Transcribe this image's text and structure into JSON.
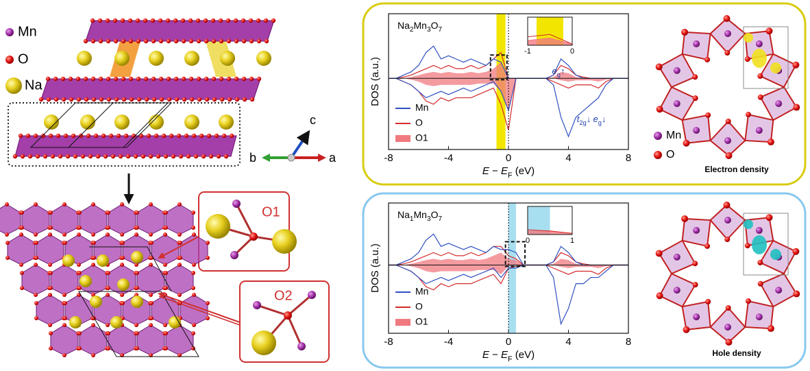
{
  "structure": {
    "legend": [
      "Mn",
      "O",
      "Na"
    ],
    "axes": [
      "c",
      "b",
      "a"
    ],
    "sites": [
      "O1",
      "O2"
    ]
  },
  "density": [
    {
      "legend": [
        "Mn",
        "O"
      ],
      "caption": "Electron density"
    },
    {
      "caption": "Hole density"
    }
  ],
  "chart_data": [
    {
      "type": "line",
      "title": [
        "Na",
        "2",
        "Mn",
        "3",
        "O",
        "7"
      ],
      "ylabel": "DOS (a.u.)",
      "xlabel": [
        "E",
        " − ",
        "E",
        "F",
        " (eV)"
      ],
      "x": [
        -8,
        -7.5,
        -7,
        -6.5,
        -6,
        -5.5,
        -5,
        -4.5,
        -4,
        -3.5,
        -3,
        -2.5,
        -2,
        -1.5,
        -1,
        -0.5,
        0,
        0.5,
        1,
        1.5,
        2,
        2.5,
        3,
        3.5,
        4,
        4.5,
        5,
        5.5,
        6,
        6.5,
        7,
        7.5,
        8
      ],
      "xlim": [
        -8,
        8
      ],
      "xticks": [
        -8,
        -4,
        0,
        4,
        8
      ],
      "ylim": [
        -1.1,
        1
      ],
      "highlight": [
        -0.8,
        -0.2
      ],
      "highlight_color": "#f2e600",
      "zoom_box": [
        -1.2,
        -0.1
      ],
      "inset": {
        "xlim": [
          -1,
          0
        ],
        "xticks": [
          -1,
          0
        ]
      },
      "annotations": [
        [
          "e",
          "g",
          "↑"
        ],
        [
          "t",
          "2g",
          "↓"
        ],
        [
          "e",
          "g",
          "↓"
        ]
      ],
      "series": [
        {
          "name": "Mn",
          "color": "#3050c0",
          "up": [
            0,
            0,
            0.05,
            0.1,
            0.2,
            0.4,
            0.5,
            0.3,
            0.35,
            0.3,
            0.25,
            0.3,
            0.25,
            0.2,
            0.3,
            0.25,
            0,
            0,
            0,
            0,
            0,
            0,
            0.05,
            0.3,
            0.2,
            0.05,
            0,
            0,
            0,
            0,
            0,
            0,
            0
          ],
          "down": [
            0,
            0,
            -0.05,
            -0.1,
            -0.2,
            -0.3,
            -0.25,
            -0.2,
            -0.25,
            -0.2,
            -0.15,
            -0.2,
            -0.15,
            -0.1,
            -0.05,
            -0.2,
            -0.5,
            0,
            0,
            0,
            0,
            0,
            -0.1,
            -0.6,
            -0.9,
            -0.6,
            -0.5,
            -0.4,
            -0.3,
            -0.1,
            0,
            0,
            0
          ]
        },
        {
          "name": "O",
          "color": "#d42a2a",
          "up": [
            0,
            0,
            0.02,
            0.05,
            0.1,
            0.15,
            0.2,
            0.15,
            0.2,
            0.15,
            0.15,
            0.2,
            0.15,
            0.2,
            0.3,
            0.4,
            0,
            0,
            0,
            0,
            0,
            0,
            0.05,
            0.2,
            0.15,
            0.05,
            0.02,
            0,
            0,
            0,
            0,
            0,
            0
          ],
          "down": [
            0,
            0,
            -0.05,
            -0.1,
            -0.2,
            -0.35,
            -0.4,
            -0.3,
            -0.35,
            -0.3,
            -0.3,
            -0.3,
            -0.25,
            -0.2,
            -0.15,
            -0.4,
            -0.8,
            0,
            0,
            0,
            0,
            0,
            -0.05,
            -0.1,
            -0.15,
            -0.1,
            -0.1,
            -0.1,
            -0.15,
            -0.05,
            0,
            0,
            0
          ]
        },
        {
          "name": "O1",
          "color": "#f07a80",
          "area": true,
          "up": [
            0,
            0,
            0,
            0.02,
            0.05,
            0.08,
            0.1,
            0.08,
            0.1,
            0.08,
            0.08,
            0.1,
            0.08,
            0.1,
            0.15,
            0.25,
            0,
            0,
            0,
            0,
            0,
            0,
            0.02,
            0.1,
            0.08,
            0.02,
            0,
            0,
            0,
            0,
            0,
            0,
            0
          ],
          "down": [
            0,
            0,
            0,
            -0.02,
            -0.05,
            -0.1,
            -0.12,
            -0.1,
            -0.1,
            -0.1,
            -0.1,
            -0.1,
            -0.08,
            -0.08,
            -0.08,
            -0.2,
            -0.5,
            0,
            0,
            0,
            0,
            0,
            0,
            -0.03,
            -0.05,
            -0.03,
            -0.03,
            -0.03,
            -0.05,
            -0.02,
            0,
            0,
            0
          ]
        }
      ]
    },
    {
      "type": "line",
      "title": [
        "Na",
        "1",
        "Mn",
        "3",
        "O",
        "7"
      ],
      "ylabel": "DOS (a.u.)",
      "xlabel": [
        "E",
        " − ",
        "E",
        "F",
        " (eV)"
      ],
      "x": [
        -8,
        -7.5,
        -7,
        -6.5,
        -6,
        -5.5,
        -5,
        -4.5,
        -4,
        -3.5,
        -3,
        -2.5,
        -2,
        -1.5,
        -1,
        -0.5,
        0,
        0.5,
        1,
        1.5,
        2,
        2.5,
        3,
        3.5,
        4,
        4.5,
        5,
        5.5,
        6,
        6.5,
        7,
        7.5,
        8
      ],
      "xlim": [
        -8,
        8
      ],
      "xticks": [
        -8,
        -4,
        0,
        4,
        8
      ],
      "ylim": [
        -1.1,
        1
      ],
      "highlight": [
        0,
        0.5
      ],
      "highlight_color": "#a8dff0",
      "zoom_box": [
        -0.2,
        1.1
      ],
      "inset": {
        "xlim": [
          0,
          1
        ],
        "xticks": [
          0,
          1
        ]
      },
      "series": [
        {
          "name": "Mn",
          "color": "#3050c0",
          "up": [
            0,
            0,
            0.05,
            0.1,
            0.2,
            0.4,
            0.5,
            0.3,
            0.35,
            0.3,
            0.25,
            0.3,
            0.25,
            0.2,
            0.3,
            0.25,
            0.25,
            0.2,
            0,
            0,
            0,
            0,
            0.05,
            0.3,
            0.2,
            0.05,
            0,
            0,
            0,
            0,
            0,
            0,
            0
          ],
          "down": [
            0,
            0,
            -0.05,
            -0.1,
            -0.2,
            -0.3,
            -0.25,
            -0.2,
            -0.25,
            -0.2,
            -0.15,
            -0.2,
            -0.15,
            -0.1,
            -0.05,
            -0.2,
            -0.05,
            -0.05,
            0,
            0,
            0,
            0,
            -0.2,
            -0.95,
            -0.7,
            -0.3,
            -0.3,
            -0.2,
            -0.2,
            -0.1,
            0,
            0,
            0
          ]
        },
        {
          "name": "O",
          "color": "#d42a2a",
          "up": [
            0,
            0,
            0.02,
            0.05,
            0.1,
            0.15,
            0.2,
            0.15,
            0.2,
            0.15,
            0.15,
            0.2,
            0.15,
            0.2,
            0.3,
            0.3,
            0.15,
            0.1,
            0,
            0,
            0,
            0,
            0.05,
            0.2,
            0.15,
            0.05,
            0.02,
            0,
            0,
            0,
            0,
            0,
            0
          ],
          "down": [
            0,
            0,
            -0.05,
            -0.1,
            -0.2,
            -0.35,
            -0.4,
            -0.3,
            -0.35,
            -0.3,
            -0.3,
            -0.3,
            -0.25,
            -0.2,
            -0.15,
            -0.3,
            -0.05,
            -0.02,
            0,
            0,
            0,
            0,
            -0.05,
            -0.1,
            -0.15,
            -0.1,
            -0.1,
            -0.1,
            -0.15,
            -0.05,
            0,
            0,
            0
          ]
        },
        {
          "name": "O1",
          "color": "#f07a80",
          "area": true,
          "up": [
            0,
            0,
            0,
            0.02,
            0.05,
            0.08,
            0.1,
            0.08,
            0.1,
            0.08,
            0.08,
            0.1,
            0.08,
            0.1,
            0.15,
            0.2,
            0.1,
            0.08,
            0,
            0,
            0,
            0,
            0.02,
            0.1,
            0.08,
            0.02,
            0,
            0,
            0,
            0,
            0,
            0,
            0
          ],
          "down": [
            0,
            0,
            0,
            -0.02,
            -0.05,
            -0.1,
            -0.12,
            -0.1,
            -0.1,
            -0.1,
            -0.1,
            -0.1,
            -0.08,
            -0.08,
            -0.08,
            -0.15,
            -0.02,
            0,
            0,
            0,
            0,
            0,
            0,
            -0.03,
            -0.05,
            -0.03,
            -0.03,
            -0.03,
            -0.05,
            -0.02,
            0,
            0,
            0
          ]
        }
      ]
    }
  ]
}
